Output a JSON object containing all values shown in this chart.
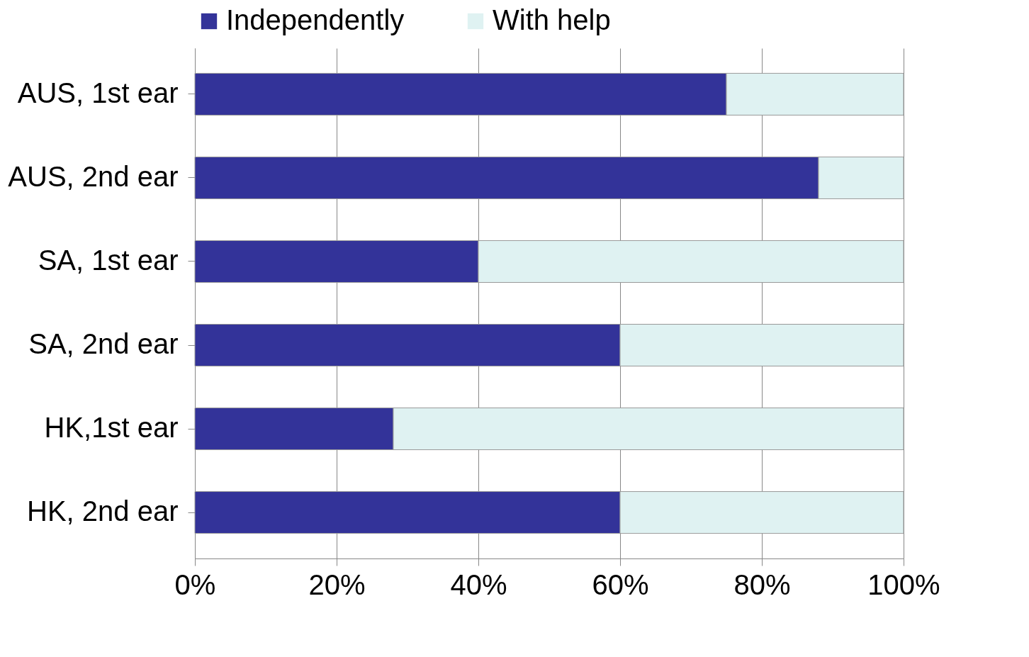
{
  "chart_data": {
    "type": "bar",
    "orientation": "horizontal",
    "stacked": true,
    "categories": [
      "AUS, 1st ear",
      "AUS, 2nd ear",
      "SA, 1st ear",
      "SA, 2nd ear",
      "HK,1st ear",
      "HK, 2nd ear"
    ],
    "series": [
      {
        "name": "Independently",
        "color": "#333399",
        "values": [
          75,
          88,
          40,
          60,
          28,
          60
        ]
      },
      {
        "name": "With help",
        "color": "#dff2f2",
        "values": [
          25,
          12,
          60,
          40,
          72,
          40
        ]
      }
    ],
    "xlim": [
      0,
      100
    ],
    "xticks": [
      {
        "value": 0,
        "label": "0%"
      },
      {
        "value": 20,
        "label": "20%"
      },
      {
        "value": 40,
        "label": "40%"
      },
      {
        "value": 60,
        "label": "60%"
      },
      {
        "value": 80,
        "label": "80%"
      },
      {
        "value": 100,
        "label": "100%"
      }
    ],
    "grid": "x",
    "legend": "top"
  }
}
